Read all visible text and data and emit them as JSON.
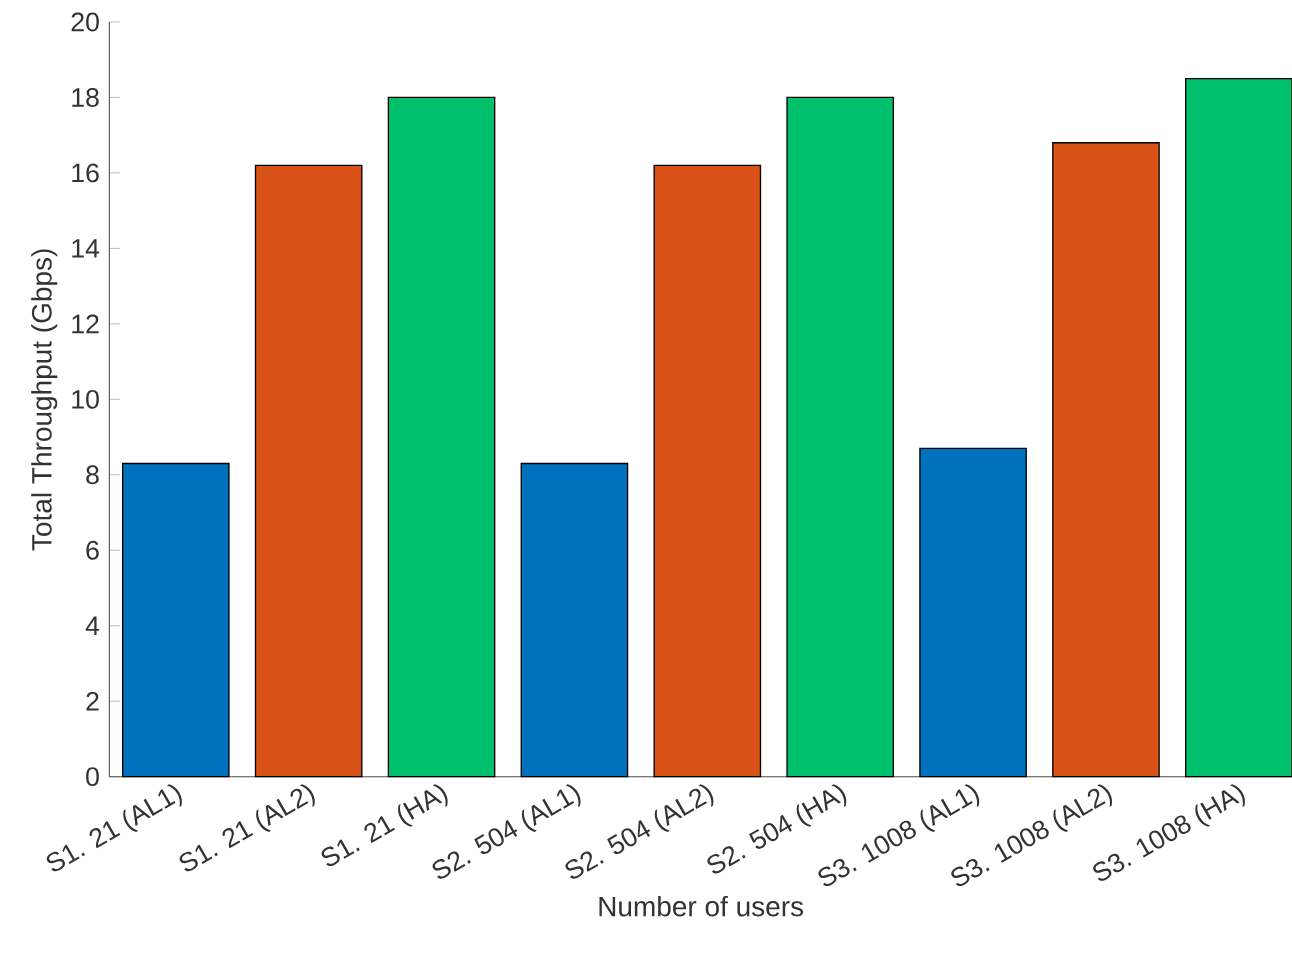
{
  "chart_data": {
    "type": "bar",
    "xlabel": "Number of users",
    "ylabel": "Total Throughput (Gbps)",
    "categories": [
      "S1. 21 (AL1)",
      "S1. 21 (AL2)",
      "S1. 21 (HA)",
      "S2. 504 (AL1)",
      "S2. 504 (AL2)",
      "S2. 504 (HA)",
      "S3. 1008 (AL1)",
      "S3. 1008 (AL2)",
      "S3. 1008 (HA)"
    ],
    "values": [
      8.3,
      16.2,
      18,
      8.3,
      16.2,
      18,
      8.7,
      16.8,
      18.5
    ],
    "colors": [
      "#0072bd",
      "#d95319",
      "#00c16b",
      "#0072bd",
      "#d95319",
      "#00c16b",
      "#0072bd",
      "#d95319",
      "#00c16b"
    ],
    "ylim": [
      0,
      20
    ],
    "yticks": [
      0,
      2,
      4,
      6,
      8,
      10,
      12,
      14,
      16,
      18,
      20
    ],
    "grid": false
  }
}
